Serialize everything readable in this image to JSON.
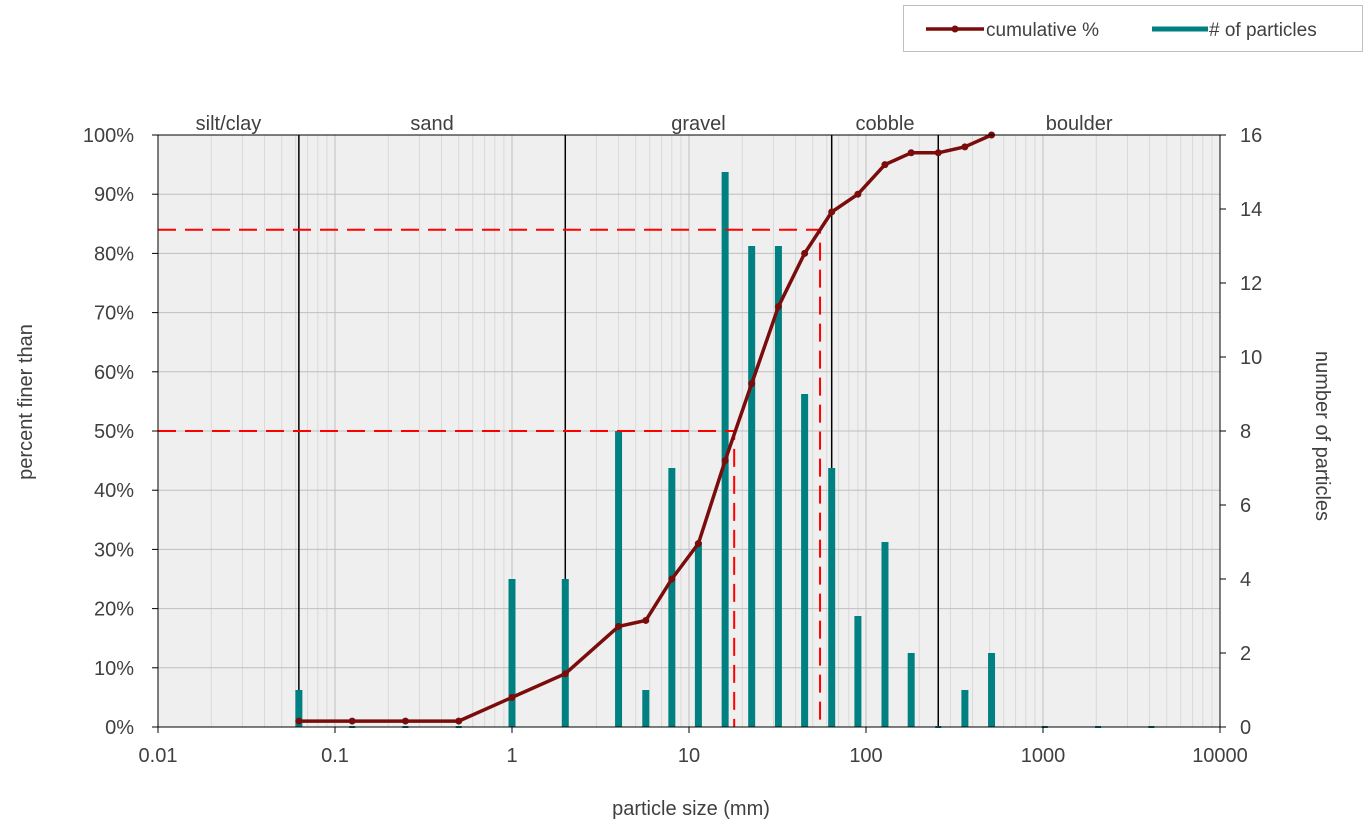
{
  "chart_data": {
    "type": "bar+line",
    "x_scale": "log",
    "xlim": [
      0.01,
      10000
    ],
    "x_ticks": [
      0.01,
      0.1,
      1,
      10,
      100,
      1000,
      10000
    ],
    "x_tick_labels": [
      "0.01",
      "0.1",
      "1",
      "10",
      "100",
      "1000",
      "10000"
    ],
    "xlabel": "particle size (mm)",
    "y_left": {
      "label": "percent finer than",
      "lim": [
        0,
        100
      ],
      "ticks": [
        0,
        10,
        20,
        30,
        40,
        50,
        60,
        70,
        80,
        90,
        100
      ],
      "tick_labels": [
        "0%",
        "10%",
        "20%",
        "30%",
        "40%",
        "50%",
        "60%",
        "70%",
        "80%",
        "90%",
        "100%"
      ]
    },
    "y_right": {
      "label": "number of particles",
      "lim": [
        0,
        16
      ],
      "ticks": [
        0,
        2,
        4,
        6,
        8,
        10,
        12,
        14,
        16
      ],
      "tick_labels": [
        "0",
        "2",
        "4",
        "6",
        "8",
        "10",
        "12",
        "14",
        "16"
      ]
    },
    "grid": true,
    "legend_position": "top-right",
    "series": [
      {
        "name": "cumulative %",
        "type": "line",
        "axis": "left",
        "color": "#7b0c0c",
        "x": [
          0.0625,
          0.125,
          0.25,
          0.5,
          1,
          2,
          4,
          5.7,
          8,
          11.3,
          16,
          22.6,
          32,
          45,
          64,
          90,
          128,
          180,
          256,
          362,
          512
        ],
        "y": [
          1,
          1,
          1,
          1,
          5,
          9,
          17,
          18,
          25,
          31,
          45,
          58,
          71,
          80,
          87,
          90,
          95,
          97,
          97,
          98,
          100
        ]
      },
      {
        "name": "# of particles",
        "type": "bar",
        "axis": "right",
        "color": "#008080",
        "x": [
          0.0625,
          0.125,
          0.25,
          0.5,
          1,
          2,
          4,
          5.7,
          8,
          11.3,
          16,
          22.6,
          32,
          45,
          64,
          90,
          128,
          180,
          256,
          362,
          512,
          1024,
          2048,
          4096
        ],
        "values": [
          1,
          0,
          0,
          0,
          4,
          4,
          8,
          1,
          7,
          5,
          15,
          13,
          13,
          9,
          7,
          3,
          5,
          2,
          0,
          1,
          2,
          0,
          0,
          0
        ]
      }
    ],
    "size_classes": [
      {
        "label": "silt/clay",
        "from": 0.01,
        "to": 0.0625
      },
      {
        "label": "sand",
        "from": 0.0625,
        "to": 2
      },
      {
        "label": "gravel",
        "from": 2,
        "to": 64
      },
      {
        "label": "cobble",
        "from": 64,
        "to": 256
      },
      {
        "label": "boulder",
        "from": 256,
        "to": 10000
      }
    ],
    "reference_lines": [
      {
        "percent": 50,
        "size_mm": 18,
        "color": "#ff0000"
      },
      {
        "percent": 84,
        "size_mm": 55,
        "color": "#ff0000"
      }
    ]
  }
}
